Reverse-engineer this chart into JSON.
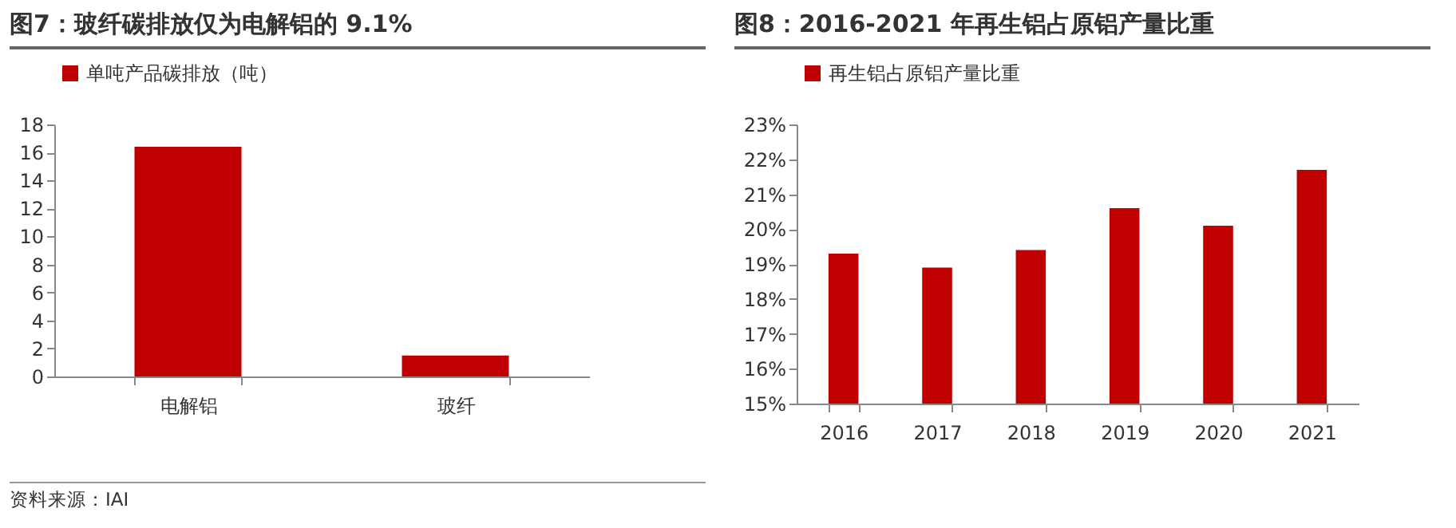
{
  "chart_data": [
    {
      "type": "bar",
      "title": "图7：玻纤碳排放仅为电解铝的 9.1%",
      "categories": [
        "电解铝",
        "玻纤"
      ],
      "series": [
        {
          "name": "单吨产品碳排放（吨）",
          "color": "#c00000",
          "values": [
            16.4,
            1.5
          ]
        }
      ],
      "ylim": [
        0,
        18
      ],
      "yticks": [
        0,
        2,
        4,
        6,
        8,
        10,
        12,
        14,
        16,
        18
      ],
      "grid": false,
      "legend": "top",
      "annotations": [
        "资料来源：IAI"
      ]
    },
    {
      "type": "bar",
      "title": "图8：2016-2021 年再生铝占原铝产量比重",
      "categories": [
        "2016",
        "2017",
        "2018",
        "2019",
        "2020",
        "2021"
      ],
      "series": [
        {
          "name": "再生铝占原铝产量比重",
          "color": "#c00000",
          "values": [
            19.3,
            18.9,
            19.4,
            20.6,
            20.1,
            21.7
          ]
        }
      ],
      "ylim": [
        15,
        23
      ],
      "yticks": [
        {
          "value": 15,
          "label": "15%"
        },
        {
          "value": 16,
          "label": "16%"
        },
        {
          "value": 17,
          "label": "17%"
        },
        {
          "value": 18,
          "label": "18%"
        },
        {
          "value": 19,
          "label": "19%"
        },
        {
          "value": 20,
          "label": "20%"
        },
        {
          "value": 21,
          "label": "21%"
        },
        {
          "value": 22,
          "label": "22%"
        },
        {
          "value": 23,
          "label": "23%"
        }
      ],
      "grid": false,
      "legend": "top"
    }
  ]
}
